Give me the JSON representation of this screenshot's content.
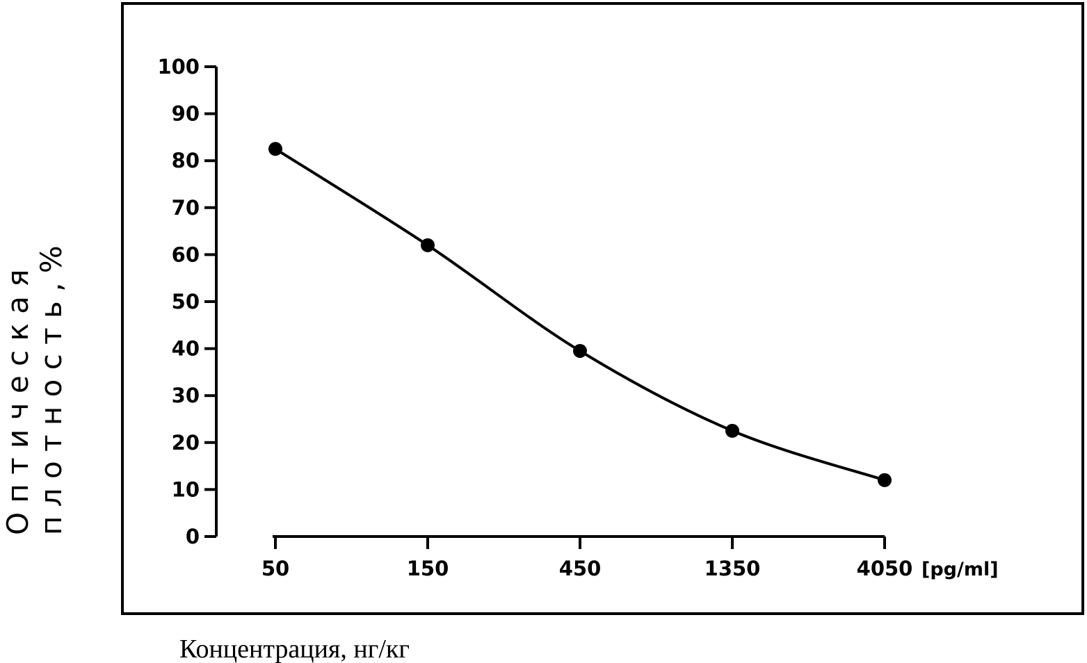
{
  "chart_data": {
    "type": "line",
    "x": [
      50,
      150,
      450,
      1350,
      4050
    ],
    "x_tick_labels": [
      "50",
      "150",
      "450",
      "1350",
      "4050"
    ],
    "x_unit": "[pg/ml]",
    "x_scale": "log",
    "series": [
      {
        "values": [
          82.5,
          62,
          39.5,
          22.5,
          12
        ]
      }
    ],
    "y_ticks": [
      0,
      10,
      20,
      30,
      40,
      50,
      60,
      70,
      80,
      90,
      100
    ],
    "ylim": [
      0,
      100
    ],
    "ylabel_line1": "О п т и ч е с к а я",
    "ylabel_line2": "п л о т н о с т ь , %",
    "xlabel": "Концентрация, нг/кг",
    "grid": false,
    "line_style": "smooth",
    "marker": "filled-circle",
    "colors": {
      "line": "#000000",
      "marker": "#000000",
      "frame": "#000000"
    }
  }
}
